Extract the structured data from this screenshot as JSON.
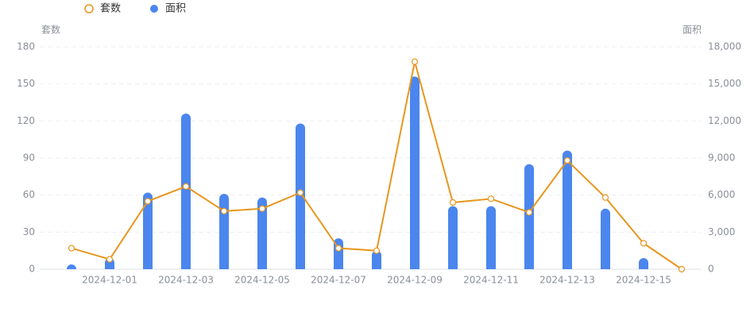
{
  "chart_data": {
    "type": "bar-line",
    "categories": [
      null,
      "2024-12-01",
      null,
      "2024-12-03",
      null,
      "2024-12-05",
      null,
      "2024-12-07",
      null,
      "2024-12-09",
      null,
      "2024-12-11",
      null,
      "2024-12-13",
      null,
      "2024-12-15",
      null
    ],
    "y_label": "套数",
    "y2_label": "面积",
    "series": [
      {
        "name": "套数",
        "type": "line",
        "color": "#e8961e",
        "values": [
          17,
          8,
          55,
          67,
          47,
          49,
          62,
          17,
          15,
          168,
          54,
          57,
          46,
          88,
          58,
          21,
          0
        ]
      },
      {
        "name": "面积",
        "type": "bar",
        "axis": "y2",
        "color": "#4b86ee",
        "values": [
          100,
          900,
          6200,
          12600,
          6100,
          5800,
          11800,
          2500,
          1500,
          15600,
          5100,
          5100,
          8500,
          9600,
          4900,
          900,
          0
        ]
      }
    ],
    "ylim": [
      0,
      180
    ],
    "yticks": [
      0,
      30,
      60,
      90,
      120,
      150,
      180
    ],
    "y2lim": [
      0,
      18000
    ],
    "y2ticks": [
      {
        "value": 0,
        "label": "0"
      },
      {
        "value": 3000,
        "label": "3,000"
      },
      {
        "value": 6000,
        "label": "6,000"
      },
      {
        "value": 9000,
        "label": "9,000"
      },
      {
        "value": 12000,
        "label": "12,000"
      },
      {
        "value": 15000,
        "label": "15,000"
      },
      {
        "value": 18000,
        "label": "18,000"
      }
    ],
    "grid": true
  }
}
